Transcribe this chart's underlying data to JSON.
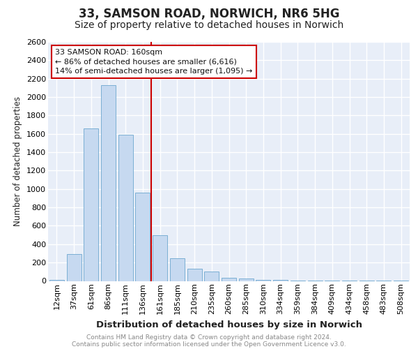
{
  "title_line1": "33, SAMSON ROAD, NORWICH, NR6 5HG",
  "title_line2": "Size of property relative to detached houses in Norwich",
  "xlabel": "Distribution of detached houses by size in Norwich",
  "ylabel": "Number of detached properties",
  "categories": [
    "12sqm",
    "37sqm",
    "61sqm",
    "86sqm",
    "111sqm",
    "136sqm",
    "161sqm",
    "185sqm",
    "210sqm",
    "235sqm",
    "260sqm",
    "285sqm",
    "310sqm",
    "334sqm",
    "359sqm",
    "384sqm",
    "409sqm",
    "434sqm",
    "458sqm",
    "483sqm",
    "508sqm"
  ],
  "values": [
    15,
    290,
    1660,
    2130,
    1590,
    960,
    495,
    250,
    130,
    100,
    35,
    25,
    15,
    10,
    5,
    5,
    3,
    5,
    3,
    5,
    3
  ],
  "bar_color": "#c6d9f0",
  "bar_edge_color": "#7bafd4",
  "vline_color": "#cc0000",
  "vline_x": 5.5,
  "annotation_line1": "33 SAMSON ROAD: 160sqm",
  "annotation_line2": "← 86% of detached houses are smaller (6,616)",
  "annotation_line3": "14% of semi-detached houses are larger (1,095) →",
  "ann_box_edge_color": "#cc0000",
  "ylim_max": 2600,
  "ytick_step": 200,
  "background_color": "#e8eef8",
  "grid_color": "#ffffff",
  "footer_line1": "Contains HM Land Registry data © Crown copyright and database right 2024.",
  "footer_line2": "Contains public sector information licensed under the Open Government Licence v3.0.",
  "title_fontsize": 12,
  "subtitle_fontsize": 10,
  "axis_label_fontsize": 9.5,
  "ylabel_fontsize": 8.5,
  "tick_fontsize": 8,
  "annotation_fontsize": 8,
  "footer_fontsize": 6.5
}
